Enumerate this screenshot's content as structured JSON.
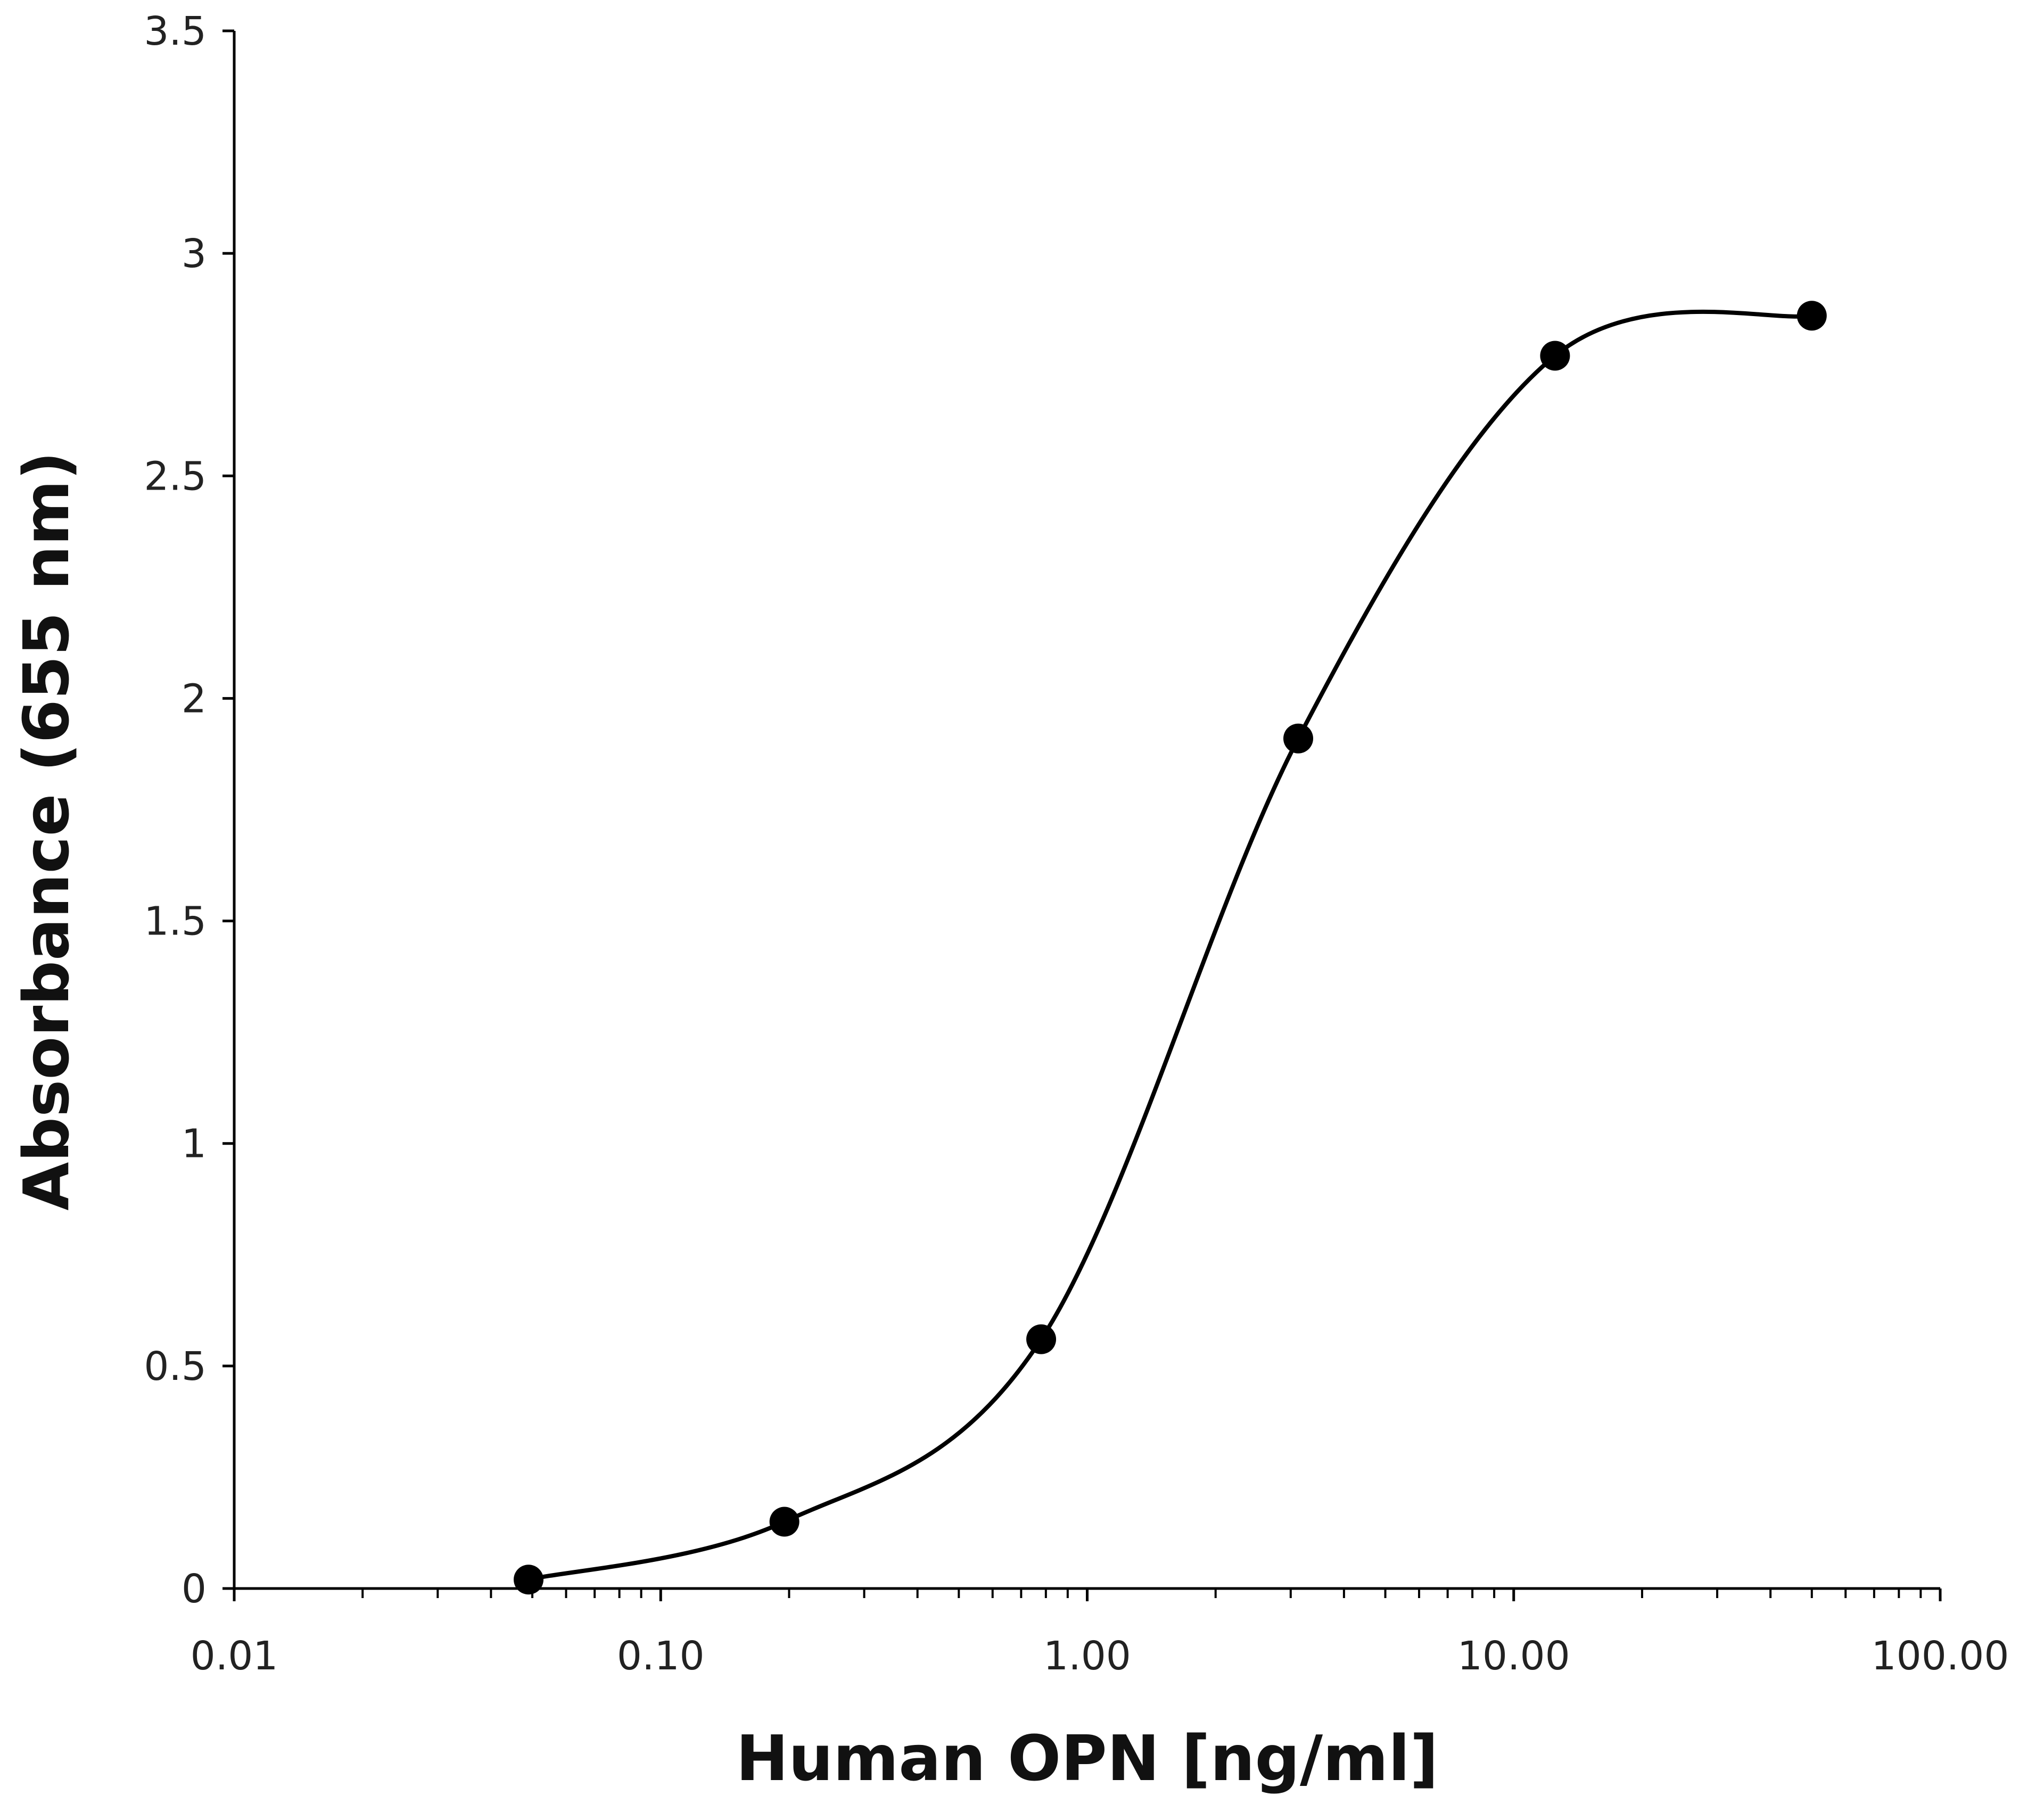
{
  "chart_data": {
    "type": "scatter",
    "title": "",
    "xlabel": "Human OPN [ng/ml]",
    "ylabel": "Absorbance (655 nm)",
    "x_scale": "log",
    "xlim": [
      0.01,
      100
    ],
    "ylim": [
      0,
      3.5
    ],
    "x_tick_labels": [
      "0.01",
      "0.10",
      "1.00",
      "10.00",
      "100.00"
    ],
    "x_tick_values": [
      0.01,
      0.1,
      1,
      10,
      100
    ],
    "y_tick_labels": [
      "0",
      "0.5",
      "1",
      "1.5",
      "2",
      "2.5",
      "3",
      "3.5"
    ],
    "y_tick_values": [
      0,
      0.5,
      1,
      1.5,
      2,
      2.5,
      3,
      3.5
    ],
    "grid": false,
    "legend": "none",
    "line_style": "smooth",
    "series": [
      {
        "x": [
          0.049,
          0.195,
          0.78,
          3.125,
          12.5,
          50
        ],
        "y": [
          0.02,
          0.15,
          0.56,
          1.91,
          2.77,
          2.86
        ]
      }
    ],
    "colors": {
      "line": "#000000",
      "marker": "#000000",
      "axis": "#000000"
    }
  }
}
